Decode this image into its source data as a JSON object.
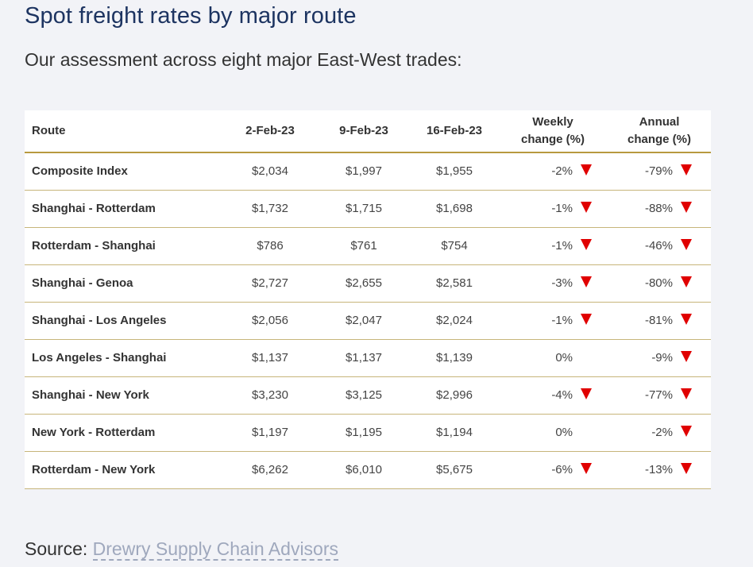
{
  "header": {
    "title": "Spot freight rates by major route",
    "subtitle": "Our assessment across eight major East-West trades:"
  },
  "table": {
    "columns": {
      "route": "Route",
      "d1": "2-Feb-23",
      "d2": "9-Feb-23",
      "d3": "16-Feb-23",
      "weekly_line1": "Weekly",
      "weekly_line2": "change (%)",
      "annual_line1": "Annual",
      "annual_line2": "change (%)"
    },
    "rows": [
      {
        "route": "Composite Index",
        "d1": "$2,034",
        "d2": "$1,997",
        "d3": "$1,955",
        "weekly": "-2%",
        "weekly_down": true,
        "annual": "-79%",
        "annual_down": true
      },
      {
        "route": "Shanghai - Rotterdam",
        "d1": "$1,732",
        "d2": "$1,715",
        "d3": "$1,698",
        "weekly": "-1%",
        "weekly_down": true,
        "annual": "-88%",
        "annual_down": true
      },
      {
        "route": "Rotterdam - Shanghai",
        "d1": "$786",
        "d2": "$761",
        "d3": "$754",
        "weekly": "-1%",
        "weekly_down": true,
        "annual": "-46%",
        "annual_down": true
      },
      {
        "route": "Shanghai - Genoa",
        "d1": "$2,727",
        "d2": "$2,655",
        "d3": "$2,581",
        "weekly": "-3%",
        "weekly_down": true,
        "annual": "-80%",
        "annual_down": true
      },
      {
        "route": "Shanghai - Los Angeles",
        "d1": "$2,056",
        "d2": "$2,047",
        "d3": "$2,024",
        "weekly": "-1%",
        "weekly_down": true,
        "annual": "-81%",
        "annual_down": true
      },
      {
        "route": "Los Angeles - Shanghai",
        "d1": "$1,137",
        "d2": "$1,137",
        "d3": "$1,139",
        "weekly": "0%",
        "weekly_down": false,
        "annual": "-9%",
        "annual_down": true
      },
      {
        "route": "Shanghai - New York",
        "d1": "$3,230",
        "d2": "$3,125",
        "d3": "$2,996",
        "weekly": "-4%",
        "weekly_down": true,
        "annual": "-77%",
        "annual_down": true
      },
      {
        "route": "New York - Rotterdam",
        "d1": "$1,197",
        "d2": "$1,195",
        "d3": "$1,194",
        "weekly": "0%",
        "weekly_down": false,
        "annual": "-2%",
        "annual_down": true
      },
      {
        "route": "Rotterdam - New York",
        "d1": "$6,262",
        "d2": "$6,010",
        "d3": "$5,675",
        "weekly": "-6%",
        "weekly_down": true,
        "annual": "-13%",
        "annual_down": true
      }
    ]
  },
  "footer": {
    "source_label": "Source:",
    "source_link": "Drewry Supply Chain Advisors"
  },
  "colors": {
    "title": "#1d3461",
    "rule": "#b8993f",
    "down_arrow": "#e00000",
    "link": "#9fa8bd"
  }
}
